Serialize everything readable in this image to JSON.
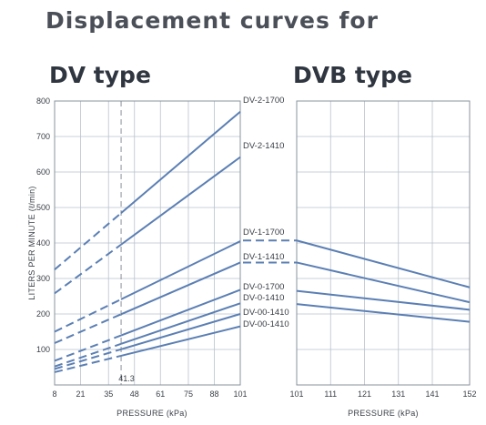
{
  "header": {
    "title": "Displacement curves for",
    "left_heading": "DV type",
    "right_heading": "DVB type"
  },
  "chart_data": [
    {
      "type": "line",
      "title": "DV type",
      "xlabel": "PRESSURE (kPa)",
      "ylabel": "LITERS PER MINUTE (ℓ/min)",
      "xticks": [
        8,
        21,
        35,
        48,
        61,
        75,
        88,
        101
      ],
      "xtick_labels": [
        "8",
        "21",
        "35",
        "48",
        "61",
        "75",
        "88",
        "101"
      ],
      "xlim": [
        8,
        101
      ],
      "yticks": [
        100,
        200,
        300,
        400,
        500,
        600,
        700,
        800
      ],
      "ylim": [
        0,
        800
      ],
      "grid": true,
      "annotation": {
        "x": 41.3,
        "label": "41.3",
        "style": "dashed vertical"
      },
      "note": "segments left of x=41.3 drawn dashed",
      "series": [
        {
          "name": "DV-2-1700",
          "x": [
            8,
            101
          ],
          "y": [
            325,
            770
          ]
        },
        {
          "name": "DV-2-1410",
          "x": [
            8,
            101
          ],
          "y": [
            258,
            642
          ]
        },
        {
          "name": "DV-1-1700",
          "x": [
            8,
            101
          ],
          "y": [
            150,
            405
          ]
        },
        {
          "name": "DV-1-1410",
          "x": [
            8,
            101
          ],
          "y": [
            118,
            345
          ]
        },
        {
          "name": "DV-0-1700",
          "x": [
            8,
            101
          ],
          "y": [
            68,
            268
          ]
        },
        {
          "name": "DV-0-1410",
          "x": [
            8,
            101
          ],
          "y": [
            52,
            230
          ]
        },
        {
          "name": "DV-00-1410",
          "x": [
            8,
            101
          ],
          "y": [
            45,
            200
          ]
        },
        {
          "name": "DV-00-1410",
          "x": [
            8,
            101
          ],
          "y": [
            36,
            165
          ]
        }
      ]
    },
    {
      "type": "line",
      "title": "DVB type",
      "xlabel": "PRESSURE (kPa)",
      "xticks": [
        101,
        111,
        121,
        131,
        141,
        152
      ],
      "xtick_labels": [
        "101",
        "111",
        "121",
        "131",
        "141",
        "152"
      ],
      "xlim": [
        101,
        152
      ],
      "ylim": [
        0,
        800
      ],
      "grid": true,
      "series": [
        {
          "x": [
            101,
            152
          ],
          "y": [
            407,
            275
          ]
        },
        {
          "x": [
            101,
            152
          ],
          "y": [
            345,
            233
          ]
        },
        {
          "x": [
            101,
            152
          ],
          "y": [
            265,
            212
          ]
        },
        {
          "x": [
            101,
            152
          ],
          "y": [
            228,
            178
          ]
        }
      ]
    }
  ],
  "colors": {
    "line": "#5b7fb4",
    "grid": "#b9c2cc",
    "frame": "#8a939d",
    "text": "#3a3f46"
  }
}
